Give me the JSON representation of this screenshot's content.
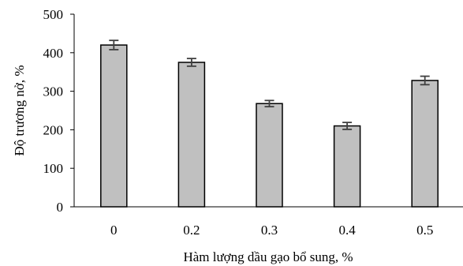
{
  "chart_data": {
    "type": "bar",
    "categories": [
      "0",
      "0.2",
      "0.3",
      "0.4",
      "0.5"
    ],
    "values": [
      420,
      375,
      268,
      210,
      328
    ],
    "error": [
      12,
      10,
      8,
      9,
      11
    ],
    "xlabel": "Hàm lượng dầu gạo bổ sung, %",
    "ylabel": "Độ trương nở, %",
    "ylim": [
      0,
      500
    ],
    "yticks": [
      "0",
      "100",
      "200",
      "300",
      "400",
      "500"
    ],
    "grid": false,
    "colors": {
      "bar_fill": "#c0c0c0",
      "bar_stroke": "#000000",
      "error_bar": "#404040",
      "axis": "#000000"
    }
  }
}
